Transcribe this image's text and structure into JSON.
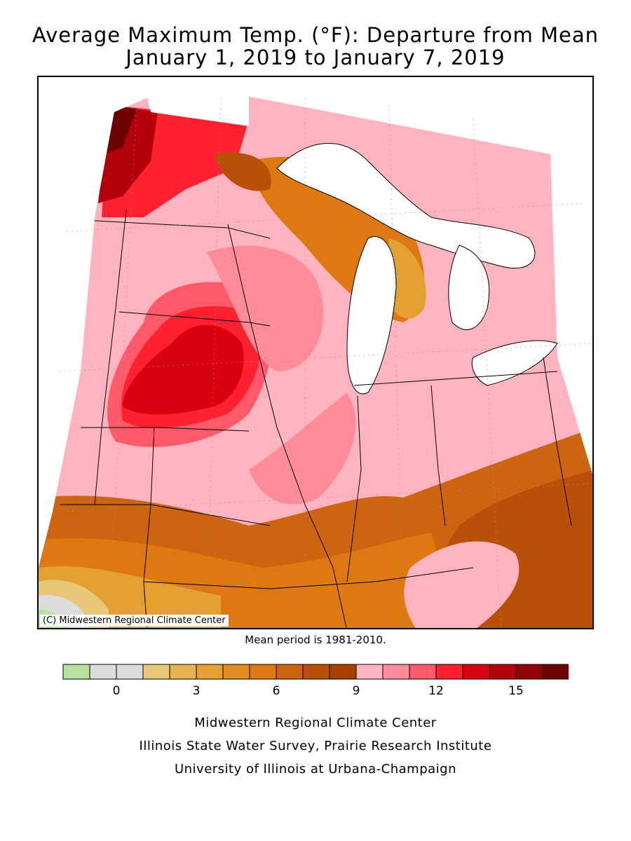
{
  "title_line1": "Average Maximum Temp. (°F): Departure from Mean",
  "title_line2": "January 1, 2019 to January 7, 2019",
  "map_credit": "(C) Midwestern Regional Climate Center",
  "mean_period": "Mean period is 1981-2010.",
  "legend": {
    "colors": [
      "#b4e3a0",
      "#dcdcdc",
      "#dcdcdc",
      "#e8c878",
      "#e6b450",
      "#e4a030",
      "#e28c20",
      "#de7810",
      "#cc6410",
      "#b85008",
      "#a84000",
      "#ffb4c0",
      "#ff8c98",
      "#ff5a6a",
      "#ff2030",
      "#d80010",
      "#b40008",
      "#900006",
      "#6e0000"
    ],
    "tick_labels": [
      "0",
      "3",
      "6",
      "9",
      "12",
      "15"
    ]
  },
  "footer": {
    "line1": "Midwestern Regional Climate Center",
    "line2": "Illinois State Water Survey, Prairie Research Institute",
    "line3": "University of Illinois at Urbana-Champaign"
  }
}
